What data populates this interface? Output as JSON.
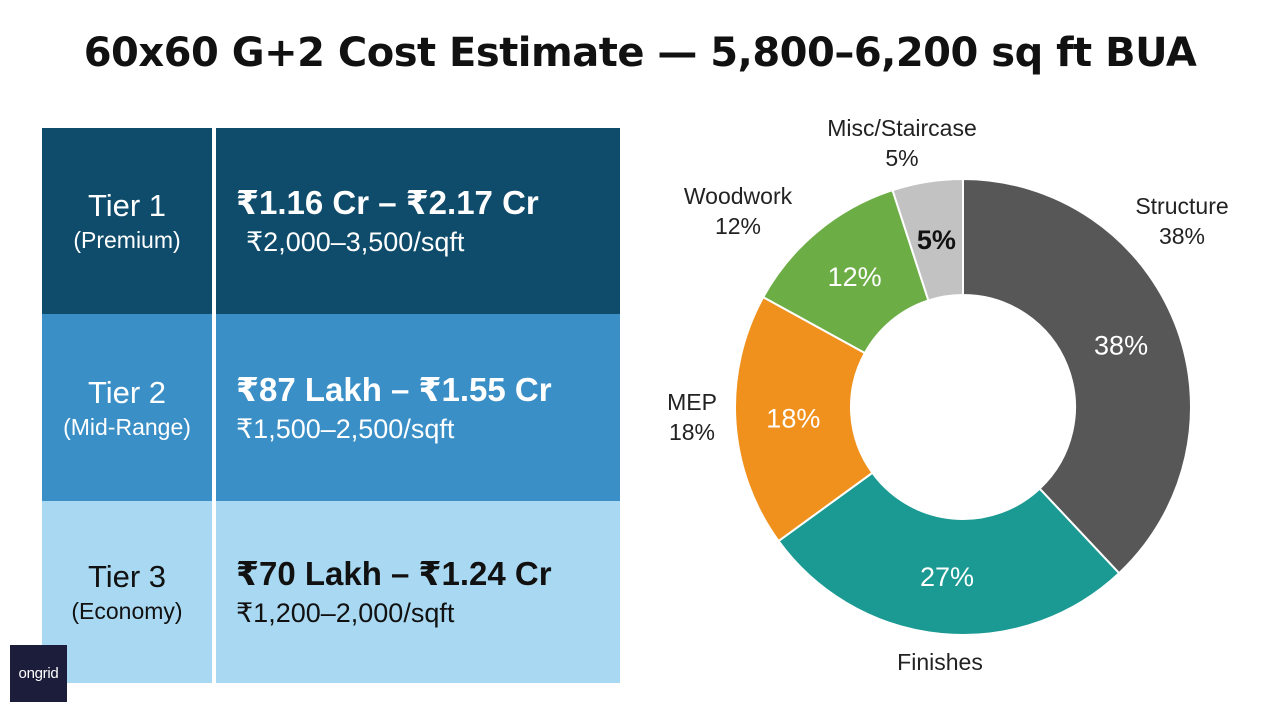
{
  "title": "60x60 G+2 Cost Estimate — 5,800–6,200 sq ft BUA",
  "tiers": [
    {
      "name": "Tier 1",
      "sub": "(Premium)",
      "range": "₹1.16 Cr – ₹2.17 Cr",
      "rate": "₹2,000–3,500/sqft",
      "bg_left": "#0f4c6b",
      "bg_right": "#0f4c6b",
      "text": "light"
    },
    {
      "name": "Tier 2",
      "sub": "(Mid-Range)",
      "range": "₹87 Lakh – ₹1.55 Cr",
      "rate": "₹1,500–2,500/sqft",
      "bg_left": "#3a8fc7",
      "bg_right": "#3a8fc7",
      "text": "light"
    },
    {
      "name": "Tier 3",
      "sub": "(Economy)",
      "range": "₹70 Lakh – ₹1.24 Cr",
      "rate": "₹1,200–2,000/sqft",
      "bg_left": "#a9d9f2",
      "bg_right": "#a9d9f2",
      "text": "dark"
    }
  ],
  "logo": {
    "text": "ongrid"
  },
  "chart_data": {
    "type": "pie",
    "donut": true,
    "slices": [
      {
        "label": "Structure",
        "value": 38,
        "display": "38%",
        "color": "#575757"
      },
      {
        "label": "Finishes",
        "value": 27,
        "display": "27%",
        "color": "#1a9a93"
      },
      {
        "label": "MEP",
        "value": 18,
        "display": "18%",
        "color": "#f0901d"
      },
      {
        "label": "Woodwork",
        "value": 12,
        "display": "12%",
        "color": "#6cae45"
      },
      {
        "label": "Misc/Staircase",
        "value": 5,
        "display": "5%",
        "color": "#c2c2c2"
      }
    ]
  }
}
